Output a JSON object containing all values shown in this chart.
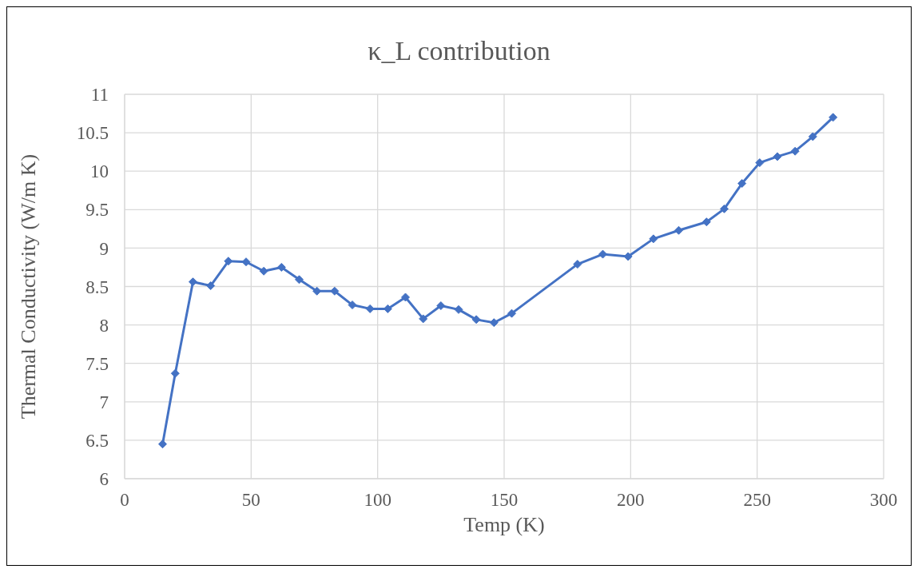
{
  "chart_data": {
    "type": "line",
    "title": "κ_L contribution",
    "xlabel": "Temp (K)",
    "ylabel": "Thermal Conductivity (W/m K)",
    "x": [
      15,
      20,
      27,
      34,
      41,
      48,
      55,
      62,
      69,
      76,
      83,
      90,
      97,
      104,
      111,
      118,
      125,
      132,
      139,
      146,
      153,
      179,
      189,
      199,
      209,
      219,
      230,
      237,
      244,
      251,
      258,
      265,
      272,
      280
    ],
    "series": [
      {
        "color": "#4472c4",
        "values": [
          6.45,
          7.37,
          8.56,
          8.51,
          8.83,
          8.82,
          8.7,
          8.75,
          8.59,
          8.44,
          8.44,
          8.26,
          8.21,
          8.21,
          8.36,
          8.08,
          8.25,
          8.2,
          8.07,
          8.03,
          8.15,
          8.79,
          8.92,
          8.89,
          9.12,
          9.23,
          9.34,
          9.51,
          9.84,
          10.11,
          10.19,
          10.26,
          10.45,
          10.7
        ]
      }
    ],
    "xlim": [
      0,
      300
    ],
    "xticks": [
      0,
      50,
      100,
      150,
      200,
      250,
      300
    ],
    "ylim": [
      6,
      11
    ],
    "yticks": [
      6,
      6.5,
      7,
      7.5,
      8,
      8.5,
      9,
      9.5,
      10,
      10.5,
      11
    ],
    "grid": true,
    "legend": false,
    "marker": "diamond",
    "line_style": "solid"
  }
}
